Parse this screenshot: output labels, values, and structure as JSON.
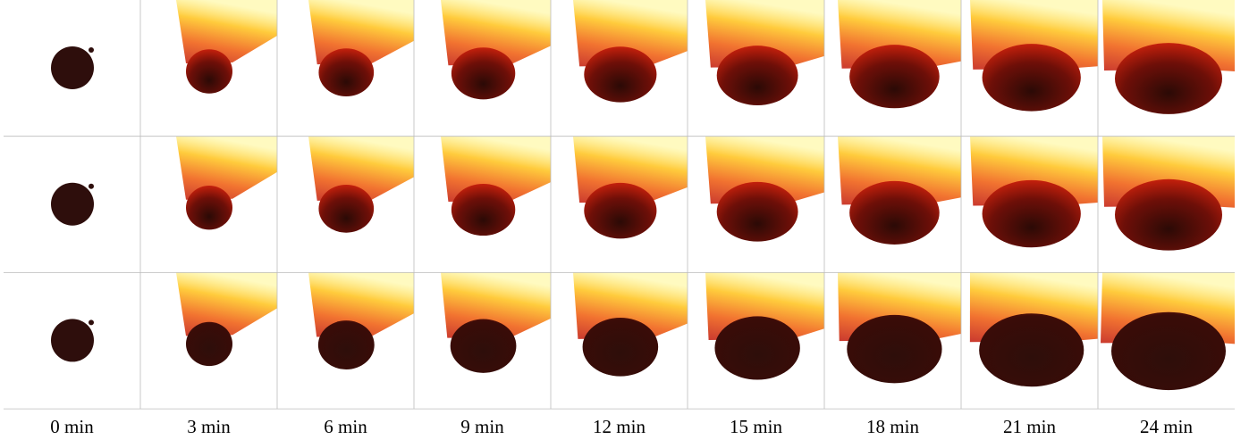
{
  "time_labels": [
    "0 min",
    "3 min",
    "6 min",
    "9 min",
    "12 min",
    "15 min",
    "18 min",
    "21 min",
    "24 min"
  ]
}
